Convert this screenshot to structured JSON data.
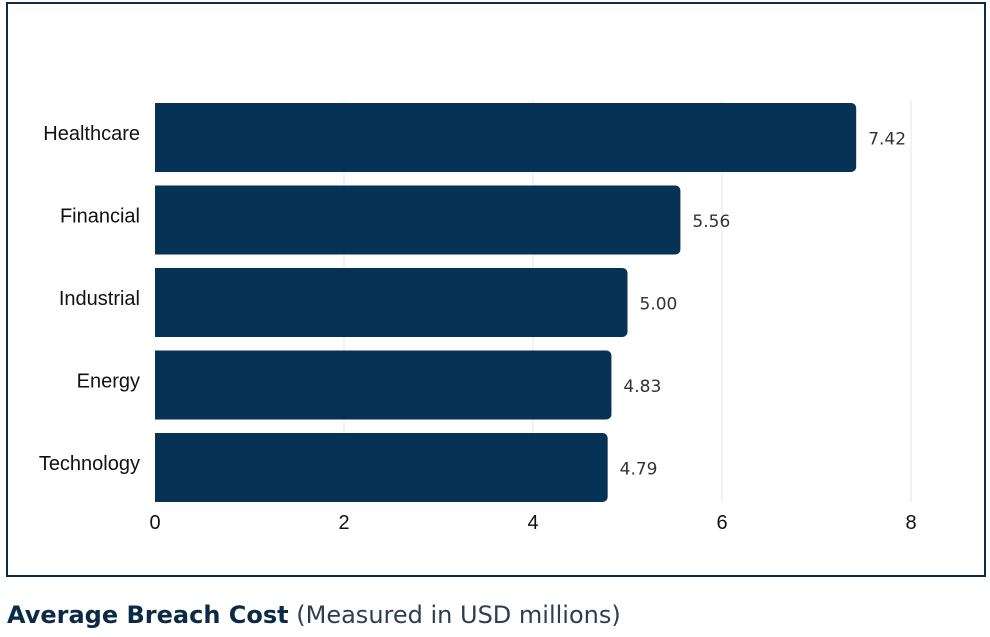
{
  "colors": {
    "bar": "#063256",
    "grid": "#e6e6e6",
    "frame": "#0b2a45",
    "label": "#111111",
    "value": "#333333"
  },
  "caption": {
    "title": "Average Breach Cost",
    "subtitle": "(Measured in USD millions)"
  },
  "chart_data": {
    "type": "bar",
    "orientation": "horizontal",
    "categories": [
      "Healthcare",
      "Financial",
      "Industrial",
      "Energy",
      "Technology"
    ],
    "values": [
      7.42,
      5.56,
      5.0,
      4.83,
      4.79
    ],
    "value_labels": [
      "7.42",
      "5.56",
      "5.00",
      "4.83",
      "4.79"
    ],
    "xlim": [
      0,
      8
    ],
    "xticks": [
      0,
      2,
      4,
      6,
      8
    ],
    "grid": true,
    "legend": false,
    "title": "Average Breach Cost",
    "subtitle": "(Measured in USD millions)",
    "xlabel": "",
    "ylabel": ""
  }
}
